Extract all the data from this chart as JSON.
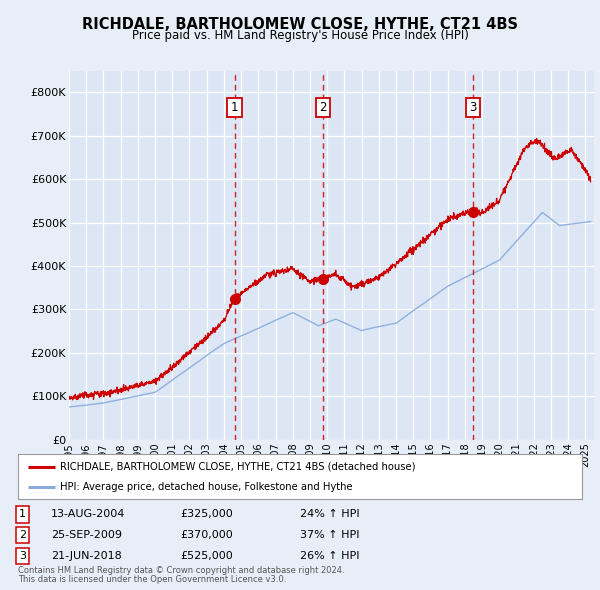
{
  "title": "RICHDALE, BARTHOLOMEW CLOSE, HYTHE, CT21 4BS",
  "subtitle": "Price paid vs. HM Land Registry's House Price Index (HPI)",
  "ylim": [
    0,
    850000
  ],
  "yticks": [
    0,
    100000,
    200000,
    300000,
    400000,
    500000,
    600000,
    700000,
    800000
  ],
  "ytick_labels": [
    "£0",
    "£100K",
    "£200K",
    "£300K",
    "£400K",
    "£500K",
    "£600K",
    "£700K",
    "£800K"
  ],
  "xlim_start": 1995.0,
  "xlim_end": 2025.5,
  "xticks": [
    1995,
    1996,
    1997,
    1998,
    1999,
    2000,
    2001,
    2002,
    2003,
    2004,
    2005,
    2006,
    2007,
    2008,
    2009,
    2010,
    2011,
    2012,
    2013,
    2014,
    2015,
    2016,
    2017,
    2018,
    2019,
    2020,
    2021,
    2022,
    2023,
    2024,
    2025
  ],
  "background_color": "#e8eef8",
  "plot_bg_color": "#dce6f5",
  "grid_color": "#ffffff",
  "red_line_color": "#cc0000",
  "blue_line_color": "#88aadd",
  "sale_label_border": "#cc0000",
  "vline_color": "#cc0000",
  "sales": [
    {
      "num": 1,
      "year": 2004.617,
      "price": 325000,
      "label": "1"
    },
    {
      "num": 2,
      "year": 2009.733,
      "price": 370000,
      "label": "2"
    },
    {
      "num": 3,
      "year": 2018.472,
      "price": 525000,
      "label": "3"
    }
  ],
  "legend_red_label": "RICHDALE, BARTHOLOMEW CLOSE, HYTHE, CT21 4BS (detached house)",
  "legend_blue_label": "HPI: Average price, detached house, Folkestone and Hythe",
  "table_rows": [
    {
      "num": "1",
      "date": "13-AUG-2004",
      "price": "£325,000",
      "change": "24% ↑ HPI"
    },
    {
      "num": "2",
      "date": "25-SEP-2009",
      "price": "£370,000",
      "change": "37% ↑ HPI"
    },
    {
      "num": "3",
      "date": "21-JUN-2018",
      "price": "£525,000",
      "change": "26% ↑ HPI"
    }
  ],
  "footnote1": "Contains HM Land Registry data © Crown copyright and database right 2024.",
  "footnote2": "This data is licensed under the Open Government Licence v3.0."
}
